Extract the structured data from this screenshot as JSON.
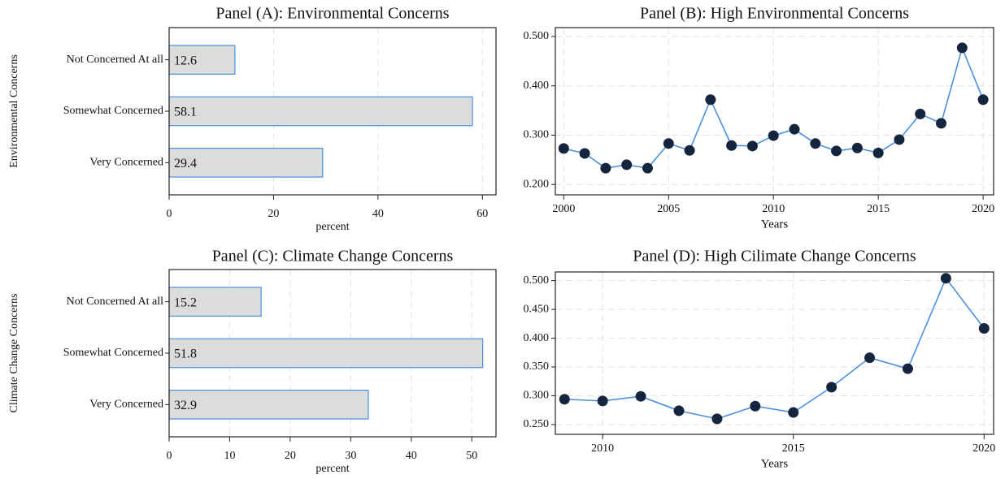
{
  "chart_data": [
    {
      "type": "bar",
      "orientation": "horizontal",
      "title": "Panel (A): Environmental Concerns",
      "y_label": "Environmental Concerns",
      "x_label": "percent",
      "categories": [
        "Not Concerned At all",
        "Somewhat Concerned",
        "Very Concerned"
      ],
      "values": [
        12.6,
        58.1,
        29.4
      ],
      "color": "#dcdcdc",
      "edge_color": "#4a90e2",
      "xlim": [
        0,
        62.6
      ],
      "xticks": [
        0,
        20,
        40,
        60
      ],
      "grid": true
    },
    {
      "type": "line",
      "title": "Panel (B): High Environmental Concerns",
      "x_label": "Years",
      "x": [
        2000,
        2001,
        2002,
        2003,
        2004,
        2005,
        2006,
        2007,
        2008,
        2009,
        2010,
        2011,
        2012,
        2013,
        2014,
        2015,
        2016,
        2017,
        2018,
        2019,
        2020
      ],
      "values": [
        0.273,
        0.263,
        0.233,
        0.24,
        0.233,
        0.283,
        0.269,
        0.372,
        0.279,
        0.278,
        0.299,
        0.312,
        0.283,
        0.268,
        0.274,
        0.264,
        0.291,
        0.343,
        0.324,
        0.477,
        0.372
      ],
      "color": "#4a90e2",
      "marker_color": "#15253d",
      "xlim": [
        1999.6,
        2020.5
      ],
      "xticks": [
        2000,
        2005,
        2010,
        2015,
        2020
      ],
      "ylim": [
        0.179,
        0.518
      ],
      "yticks": [
        {
          "value": 0.2,
          "label": "0.200"
        },
        {
          "value": 0.3,
          "label": "0.300"
        },
        {
          "value": 0.4,
          "label": "0.400"
        },
        {
          "value": 0.5,
          "label": "0.500"
        }
      ],
      "grid": true
    },
    {
      "type": "bar",
      "orientation": "horizontal",
      "title": "Panel (C): Climate Change Concerns",
      "y_label": "Climate Change Concerns",
      "x_label": "percent",
      "categories": [
        "Not Concerned At all",
        "Somewhat Concerned",
        "Very Concerned"
      ],
      "values": [
        15.2,
        51.8,
        32.9
      ],
      "color": "#dcdcdc",
      "edge_color": "#4a90e2",
      "xlim": [
        0,
        54
      ],
      "xticks": [
        0,
        10,
        20,
        30,
        40,
        50
      ],
      "grid": true
    },
    {
      "type": "line",
      "title": "Panel (D): High Cilimate Change Concerns",
      "x_label": "Years",
      "x": [
        2009,
        2010,
        2011,
        2012,
        2013,
        2014,
        2015,
        2016,
        2017,
        2018,
        2019,
        2020
      ],
      "values": [
        0.294,
        0.291,
        0.299,
        0.274,
        0.26,
        0.282,
        0.271,
        0.315,
        0.366,
        0.347,
        0.504,
        0.417
      ],
      "color": "#4a90e2",
      "marker_color": "#15253d",
      "xlim": [
        2008.76,
        2020.25
      ],
      "xticks": [
        2010,
        2015,
        2020
      ],
      "ylim": [
        0.233,
        0.515
      ],
      "yticks": [
        {
          "value": 0.25,
          "label": "0.250"
        },
        {
          "value": 0.3,
          "label": "0.300"
        },
        {
          "value": 0.35,
          "label": "0.350"
        },
        {
          "value": 0.4,
          "label": "0.400"
        },
        {
          "value": 0.45,
          "label": "0.450"
        },
        {
          "value": 0.5,
          "label": "0.500"
        }
      ],
      "grid": true
    }
  ]
}
